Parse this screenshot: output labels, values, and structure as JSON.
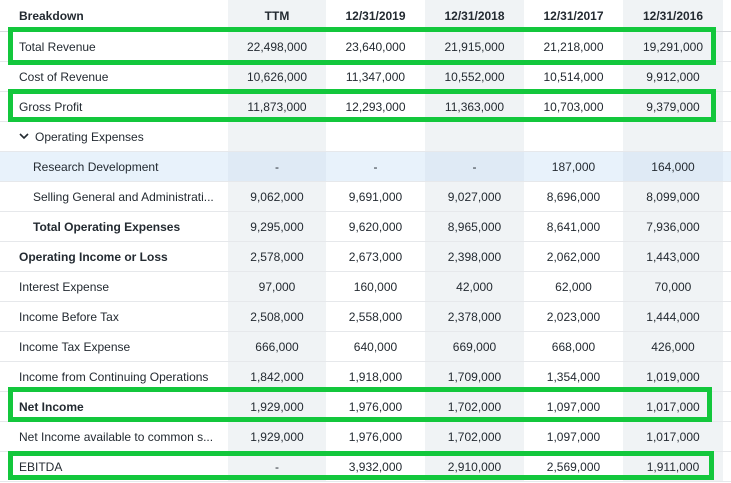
{
  "header": {
    "breakdown": "Breakdown",
    "columns": [
      "TTM",
      "12/31/2019",
      "12/31/2018",
      "12/31/2017",
      "12/31/2016"
    ]
  },
  "rows": [
    {
      "label": "Total Revenue",
      "values": [
        "22,498,000",
        "23,640,000",
        "21,915,000",
        "21,218,000",
        "19,291,000"
      ]
    },
    {
      "label": "Cost of Revenue",
      "values": [
        "10,626,000",
        "11,347,000",
        "10,552,000",
        "10,514,000",
        "9,912,000"
      ]
    },
    {
      "label": "Gross Profit",
      "values": [
        "11,873,000",
        "12,293,000",
        "11,363,000",
        "10,703,000",
        "9,379,000"
      ]
    },
    {
      "label": "Operating Expenses",
      "values": [
        "",
        "",
        "",
        "",
        ""
      ]
    },
    {
      "label": "Research Development",
      "values": [
        "-",
        "-",
        "-",
        "187,000",
        "164,000"
      ]
    },
    {
      "label": "Selling General and Administrati...",
      "values": [
        "9,062,000",
        "9,691,000",
        "9,027,000",
        "8,696,000",
        "8,099,000"
      ]
    },
    {
      "label": "Total Operating Expenses",
      "values": [
        "9,295,000",
        "9,620,000",
        "8,965,000",
        "8,641,000",
        "7,936,000"
      ]
    },
    {
      "label": "Operating Income or Loss",
      "values": [
        "2,578,000",
        "2,673,000",
        "2,398,000",
        "2,062,000",
        "1,443,000"
      ]
    },
    {
      "label": "Interest Expense",
      "values": [
        "97,000",
        "160,000",
        "42,000",
        "62,000",
        "70,000"
      ]
    },
    {
      "label": "Income Before Tax",
      "values": [
        "2,508,000",
        "2,558,000",
        "2,378,000",
        "2,023,000",
        "1,444,000"
      ]
    },
    {
      "label": "Income Tax Expense",
      "values": [
        "666,000",
        "640,000",
        "669,000",
        "668,000",
        "426,000"
      ]
    },
    {
      "label": "Income from Continuing Operations",
      "values": [
        "1,842,000",
        "1,918,000",
        "1,709,000",
        "1,354,000",
        "1,019,000"
      ]
    },
    {
      "label": "Net Income",
      "values": [
        "1,929,000",
        "1,976,000",
        "1,702,000",
        "1,097,000",
        "1,017,000"
      ]
    },
    {
      "label": "Net Income available to common s...",
      "values": [
        "1,929,000",
        "1,976,000",
        "1,702,000",
        "1,097,000",
        "1,017,000"
      ]
    },
    {
      "label": "EBITDA",
      "values": [
        "-",
        "3,932,000",
        "2,910,000",
        "2,569,000",
        "1,911,000"
      ]
    }
  ],
  "icons": {
    "expand": "chevron-down-icon"
  },
  "colors": {
    "highlight_box": "#13c73c",
    "hover_row": "#e8f2fb",
    "alt_column": "#f0f3f5"
  }
}
